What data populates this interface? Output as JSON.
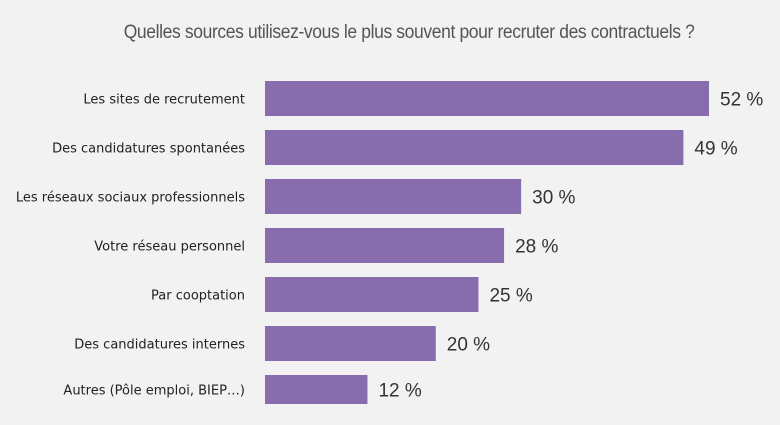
{
  "chart_data": {
    "type": "bar",
    "orientation": "horizontal",
    "title": "Quelles sources utilisez-vous le plus souvent pour recruter des contractuels ?",
    "categories": [
      "Les sites de recrutement",
      "Des candidatures spontanées",
      "Les réseaux sociaux professionnels",
      "Votre réseau personnel",
      "Par cooptation",
      "Des candidatures internes",
      "Autres (Pôle emploi, BIEP…)"
    ],
    "values": [
      52,
      49,
      30,
      28,
      25,
      20,
      12
    ],
    "value_labels": [
      "52 %",
      "49 %",
      "30 %",
      "28 %",
      "25 %",
      "20 %",
      "12 %"
    ],
    "unit": "%",
    "xlim": [
      0,
      52
    ],
    "grid": false,
    "legend": "none",
    "bar_color": "#876cae",
    "background_color": "#f2f2f2"
  }
}
